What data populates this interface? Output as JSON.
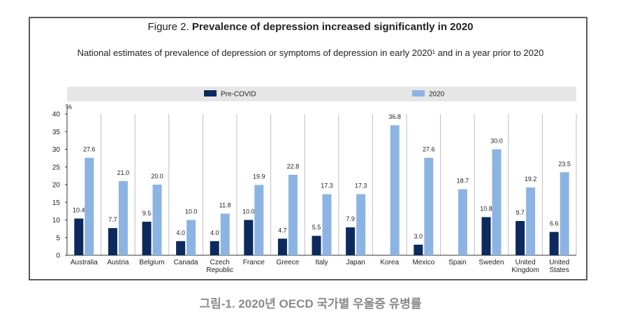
{
  "figure": {
    "title_lead": "Figure 2.",
    "title_main": "Prevalence of depression increased significantly in 2020",
    "subtitle": "National estimates of prevalence of depression or symptoms of depression in early 2020¹ and in a year prior to 2020"
  },
  "caption": "그림-1. 2020년 OECD 국가별 우울증 유병률",
  "colors": {
    "pre_covid": "#0c2a5e",
    "y2020": "#8cb4e2",
    "legend_bg": "#e6e6e6",
    "grid": "#bfbfbf"
  },
  "chart_data": {
    "type": "bar",
    "y_unit": "%",
    "ylim": [
      0,
      40
    ],
    "yticks": [
      0,
      5,
      10,
      15,
      20,
      25,
      30,
      35,
      40
    ],
    "grid": "vertical separators between categories",
    "legend_position": "top",
    "categories": [
      [
        "Australia"
      ],
      [
        "Austria"
      ],
      [
        "Belgium"
      ],
      [
        "Canada"
      ],
      [
        "Czech",
        "Republic"
      ],
      [
        "France"
      ],
      [
        "Greece"
      ],
      [
        "Italy"
      ],
      [
        "Japan"
      ],
      [
        "Korea"
      ],
      [
        "Mexico"
      ],
      [
        "Spain"
      ],
      [
        "Sweden"
      ],
      [
        "United",
        "Kingdom"
      ],
      [
        "United",
        "States"
      ]
    ],
    "series": [
      {
        "name": "Pre-COVID",
        "values": [
          10.4,
          7.7,
          9.5,
          4.0,
          4.0,
          10.0,
          4.7,
          5.5,
          7.9,
          null,
          3.0,
          null,
          10.8,
          9.7,
          6.6
        ]
      },
      {
        "name": "2020",
        "values": [
          27.6,
          21.0,
          20.0,
          10.0,
          11.8,
          19.9,
          22.8,
          17.3,
          17.3,
          36.8,
          27.6,
          18.7,
          30.0,
          19.2,
          23.5
        ]
      }
    ]
  }
}
